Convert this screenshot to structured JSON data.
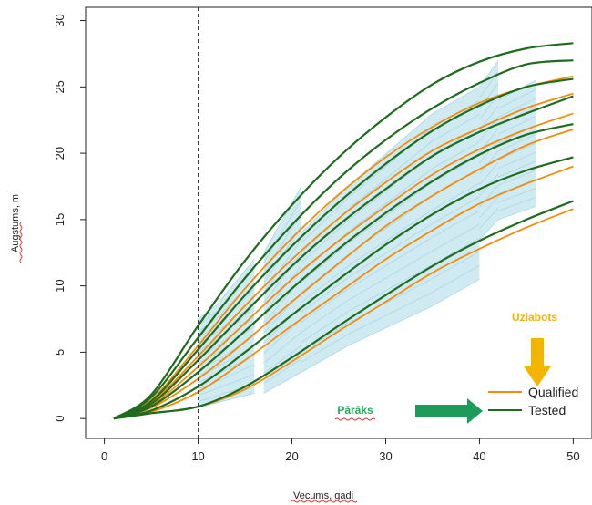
{
  "chart_data": {
    "type": "line",
    "title": "",
    "xlabel": "Vecums, gadi",
    "ylabel": "Augstums, m",
    "xlim": [
      -2,
      52
    ],
    "ylim": [
      -1.5,
      31
    ],
    "x_ticks": [
      0,
      10,
      20,
      30,
      40,
      50
    ],
    "y_ticks": [
      0,
      5,
      10,
      15,
      20,
      25,
      30
    ],
    "vline_x": 10,
    "grid": false,
    "legend_position": "bottom-right",
    "legend": [
      {
        "label": "Qualified",
        "color": "#f28c0f"
      },
      {
        "label": "Tested",
        "color": "#1f6b1f"
      }
    ],
    "annotations": {
      "uzlabots": {
        "text": "Uzlabots",
        "color": "#f5b400"
      },
      "paraks": {
        "text": "Pārāks",
        "color": "#2aa85a"
      }
    },
    "data_band_color": "#a9d8e6",
    "data_band_blocks": [
      {
        "x_range": [
          10,
          12
        ],
        "low": [
          0.8,
          1.2
        ],
        "high": [
          7.5,
          8.6
        ]
      },
      {
        "x_range": [
          12,
          16
        ],
        "low": [
          1.2,
          1.9
        ],
        "high": [
          8.6,
          12.0
        ]
      },
      {
        "x_range": [
          17,
          21
        ],
        "low": [
          1.9,
          3.5
        ],
        "high": [
          12.5,
          17.5
        ]
      },
      {
        "x_range": [
          21,
          26
        ],
        "low": [
          3.5,
          5.5
        ],
        "high": [
          14.0,
          17.5
        ]
      },
      {
        "x_range": [
          26,
          35
        ],
        "low": [
          5.5,
          8.5
        ],
        "high": [
          17.5,
          23.0
        ]
      },
      {
        "x_range": [
          35,
          40
        ],
        "low": [
          8.5,
          10.5
        ],
        "high": [
          23.0,
          25.0
        ]
      },
      {
        "x_range": [
          40,
          42
        ],
        "low": [
          13.5,
          15.0
        ],
        "high": [
          25.0,
          27.0
        ]
      },
      {
        "x_range": [
          42,
          46
        ],
        "low": [
          15.0,
          16.0
        ],
        "high": [
          24.0,
          25.5
        ]
      }
    ],
    "series_groups": [
      {
        "group": "Qualified",
        "color": "#f28c0f",
        "x": [
          1,
          5,
          10,
          15,
          20,
          25,
          30,
          35,
          40,
          45,
          50
        ],
        "series": [
          {
            "values": [
              0,
              0.4,
              0.9,
              2.2,
              4.3,
              6.6,
              8.8,
              11.0,
              12.8,
              14.4,
              15.8
            ]
          },
          {
            "values": [
              0,
              0.5,
              2.0,
              4.4,
              7.0,
              9.5,
              12.0,
              14.2,
              16.2,
              17.7,
              19.0
            ]
          },
          {
            "values": [
              0,
              0.8,
              3.0,
              5.8,
              8.8,
              11.7,
              14.5,
              16.8,
              18.8,
              20.6,
              21.8
            ]
          },
          {
            "values": [
              0,
              1.0,
              3.9,
              7.2,
              10.5,
              13.4,
              16.0,
              18.4,
              20.3,
              21.8,
              23.0
            ]
          },
          {
            "values": [
              0,
              1.2,
              4.7,
              8.5,
              12.0,
              15.1,
              17.8,
              20.2,
              21.9,
              23.4,
              24.5
            ]
          },
          {
            "values": [
              0,
              1.4,
              5.5,
              9.8,
              13.6,
              16.9,
              19.7,
              22.0,
              23.8,
              25.0,
              25.8
            ]
          }
        ]
      },
      {
        "group": "Tested",
        "color": "#1f6b1f",
        "x": [
          1,
          5,
          10,
          15,
          20,
          25,
          30,
          35,
          40,
          45,
          50
        ],
        "series": [
          {
            "values": [
              0,
              0.4,
              0.9,
              2.4,
              4.6,
              7.0,
              9.3,
              11.5,
              13.4,
              15.0,
              16.4
            ]
          },
          {
            "values": [
              0,
              0.6,
              2.4,
              5.0,
              7.8,
              10.5,
              13.1,
              15.4,
              17.3,
              18.7,
              19.7
            ]
          },
          {
            "values": [
              0,
              0.9,
              3.5,
              6.6,
              9.8,
              12.8,
              15.5,
              17.9,
              19.9,
              21.4,
              22.2
            ]
          },
          {
            "values": [
              0,
              1.1,
              4.4,
              8.0,
              11.5,
              14.6,
              17.3,
              19.8,
              21.6,
              23.0,
              24.3
            ]
          },
          {
            "values": [
              0,
              1.3,
              5.2,
              9.3,
              13.0,
              16.3,
              19.2,
              21.7,
              23.6,
              25.0,
              25.6
            ]
          },
          {
            "values": [
              0,
              1.6,
              6.1,
              10.6,
              14.6,
              18.1,
              21.0,
              23.4,
              25.3,
              26.7,
              27.0
            ]
          },
          {
            "values": [
              0,
              1.8,
              7.0,
              11.9,
              16.1,
              19.7,
              22.7,
              25.2,
              26.9,
              27.9,
              28.3
            ]
          }
        ]
      }
    ]
  }
}
